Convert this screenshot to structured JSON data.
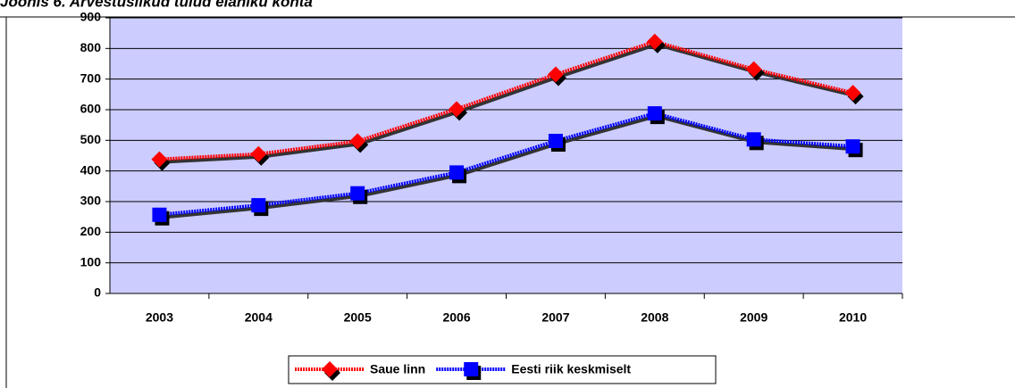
{
  "chart_data": {
    "type": "line",
    "title": "Joonis 6. Arvestuslikud tulud elaniku kohta",
    "categories": [
      "2003",
      "2004",
      "2005",
      "2006",
      "2007",
      "2008",
      "2009",
      "2010"
    ],
    "series": [
      {
        "name": "Saue linn",
        "color": "#ff0000",
        "marker": "diamond",
        "values": [
          438,
          455,
          497,
          602,
          715,
          822,
          732,
          655
        ]
      },
      {
        "name": "Eesti riik keskmiselt",
        "color": "#0000ff",
        "marker": "square",
        "values": [
          257,
          288,
          327,
          395,
          498,
          588,
          503,
          480
        ]
      }
    ],
    "ylim": [
      0,
      900
    ],
    "yticks": [
      0,
      100,
      200,
      300,
      400,
      500,
      600,
      700,
      800,
      900
    ],
    "grid": true,
    "plot_background": "#ccccff",
    "legend": "bottom"
  }
}
